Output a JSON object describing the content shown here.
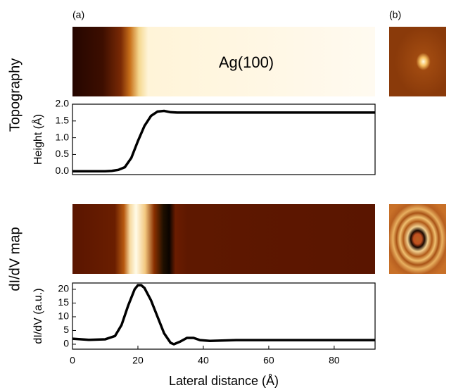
{
  "panel_labels": {
    "a": "(a)",
    "b": "(b)"
  },
  "row_labels": {
    "top": "Topography",
    "bottom": "dI/dV map"
  },
  "image_label": "Ag(100)",
  "chart_data": [
    {
      "type": "line",
      "ylabel": "Height (Å)",
      "x": [
        0,
        5,
        10,
        12,
        14,
        16,
        18,
        20,
        22,
        24,
        26,
        28,
        30,
        32,
        40,
        60,
        80,
        92.5
      ],
      "values": [
        0,
        0,
        0,
        0.01,
        0.04,
        0.12,
        0.4,
        0.9,
        1.35,
        1.65,
        1.78,
        1.8,
        1.76,
        1.75,
        1.75,
        1.75,
        1.75,
        1.75
      ],
      "color": "#000000",
      "xlim": [
        0,
        92.5
      ],
      "ylim": [
        -0.1,
        2.0
      ],
      "yticks": [
        {
          "value": 0,
          "label": "0.0"
        },
        {
          "value": 0.5,
          "label": "0.5"
        },
        {
          "value": 1,
          "label": "1.0"
        },
        {
          "value": 1.5,
          "label": "1.5"
        },
        {
          "value": 2,
          "label": "2.0"
        }
      ]
    },
    {
      "type": "line",
      "ylabel": "dI/dV (a.u.)",
      "xlabel": "Lateral distance (Å)",
      "x": [
        0,
        5,
        10,
        13,
        15,
        17,
        19,
        20,
        21,
        22,
        24,
        26,
        28,
        30,
        31,
        33,
        35,
        37,
        39,
        42,
        50,
        60,
        80,
        92.5
      ],
      "values": [
        2,
        1.6,
        1.8,
        3,
        7,
        14,
        20,
        21.5,
        21.5,
        20.5,
        16,
        10,
        4,
        0.5,
        0,
        1,
        2.3,
        2.3,
        1.5,
        1.2,
        1.5,
        1.5,
        1.5,
        1.5
      ],
      "color": "#000000",
      "xlim": [
        0,
        92.5
      ],
      "ylim": [
        -1.8,
        22.3
      ],
      "xticks": [
        0,
        20,
        40,
        60,
        80
      ],
      "yticks": [
        0,
        5,
        10,
        15,
        20
      ]
    }
  ]
}
